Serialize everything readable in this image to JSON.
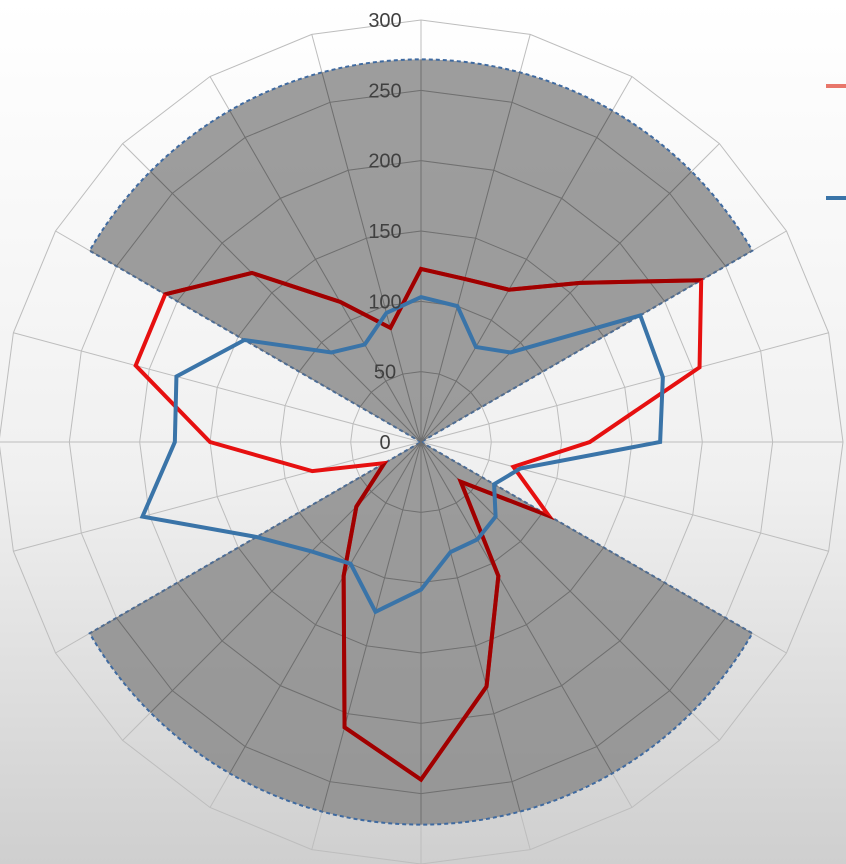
{
  "chart_data": {
    "type": "radar",
    "title": "",
    "axis": {
      "rmax": 300,
      "ticks": [
        0,
        50,
        100,
        150,
        200,
        250,
        300
      ],
      "tick_labels": [
        "0",
        "50",
        "100",
        "150",
        "200",
        "250",
        "300"
      ],
      "spokes": 24,
      "grid": true
    },
    "shaded_sectors": {
      "radius": 272,
      "fill": "#8c8c8c",
      "edge": "#3f6aa0",
      "ranges_deg": [
        [
          -60,
          60
        ],
        [
          120,
          240
        ]
      ]
    },
    "series": [
      {
        "name": "",
        "color": "#e61010",
        "color_in_shaded": "#a00000",
        "values": [
          123,
          120,
          125,
          160,
          230,
          205,
          120,
          68,
          105,
          40,
          110,
          180,
          240,
          210,
          110,
          65,
          30,
          80,
          150,
          210,
          210,
          170,
          115,
          84
        ]
      },
      {
        "name": "",
        "color": "#3a74a8",
        "values": [
          103,
          100,
          78,
          90,
          180,
          178,
          170,
          73,
          60,
          75,
          80,
          81,
          105,
          125,
          100,
          110,
          135,
          205,
          175,
          180,
          145,
          90,
          80,
          95
        ]
      }
    ],
    "legend": {
      "placement": "right",
      "entries": [
        {
          "color": "#e8766a"
        },
        {
          "color": "#3a74a8"
        }
      ]
    }
  }
}
